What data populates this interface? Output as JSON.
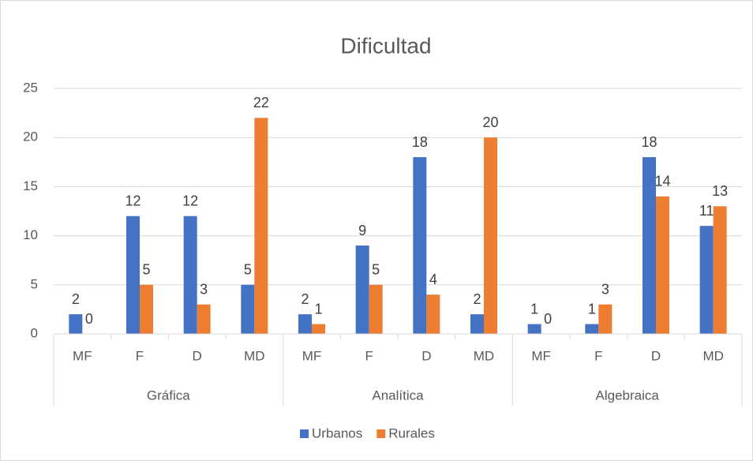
{
  "chart_data": {
    "type": "bar",
    "title": "Dificultad",
    "groups": [
      {
        "name": "Gráfica",
        "categories": [
          "MF",
          "F",
          "D",
          "MD"
        ]
      },
      {
        "name": "Analítica",
        "categories": [
          "MF",
          "F",
          "D",
          "MD"
        ]
      },
      {
        "name": "Algebraica",
        "categories": [
          "MF",
          "F",
          "D",
          "MD"
        ]
      }
    ],
    "series": [
      {
        "name": "Urbanos",
        "color": "#4472c4",
        "values": [
          2,
          12,
          12,
          5,
          2,
          9,
          18,
          2,
          1,
          1,
          18,
          11
        ]
      },
      {
        "name": "Rurales",
        "color": "#ed7d31",
        "values": [
          0,
          5,
          3,
          22,
          1,
          5,
          4,
          20,
          0,
          3,
          14,
          13
        ]
      }
    ],
    "ylim": [
      0,
      25
    ],
    "yticks": [
      0,
      5,
      10,
      15,
      20,
      25
    ],
    "grid": true,
    "legend": "bottom"
  }
}
